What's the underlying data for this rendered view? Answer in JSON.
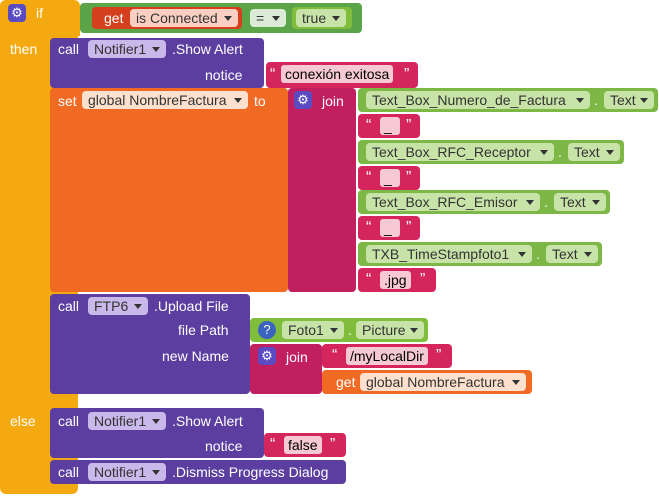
{
  "if_block": {
    "if_label": "if",
    "then_label": "then",
    "else_label": "else",
    "get_label": "get",
    "is_connected": "is Connected",
    "op": "=",
    "true_label": "true"
  },
  "alert1": {
    "call": "call",
    "component": "Notifier1",
    "method": ".Show Alert",
    "notice_label": "notice",
    "notice_value": "conexión exitosa"
  },
  "set_block": {
    "set": "set",
    "variable": "global NombreFactura",
    "to": "to",
    "join": "join",
    "items": [
      {
        "component": "Text_Box_Numero_de_Factura",
        "property": "Text"
      },
      {
        "string": "_"
      },
      {
        "component": "Text_Box_RFC_Receptor",
        "property": "Text"
      },
      {
        "string": "_"
      },
      {
        "component": "Text_Box_RFC_Emisor",
        "property": "Text"
      },
      {
        "string": "_"
      },
      {
        "component": "TXB_TimeStampfoto1",
        "property": "Text"
      },
      {
        "string": ".jpg"
      }
    ]
  },
  "upload": {
    "call": "call",
    "component": "FTP6",
    "method": ".Upload File",
    "file_path_label": "file Path",
    "foto": "Foto1",
    "picture": "Picture",
    "new_name_label": "new Name",
    "join": "join",
    "dir": "/myLocalDir",
    "get": "get",
    "variable": "global NombreFactura"
  },
  "alert2": {
    "call": "call",
    "component": "Notifier1",
    "method": ".Show Alert",
    "notice_label": "notice",
    "notice_value": "false"
  },
  "dismiss": {
    "call": "call",
    "component": "Notifier1",
    "method": ".Dismiss Progress Dialog"
  },
  "dot": ".",
  "quote_open": "“",
  "quote_close": "”",
  "colors": {
    "control": "#f5a910",
    "component": "#5b3ea0",
    "variable": "#f06a24",
    "text": "#d4265d",
    "logic": "#5ba548",
    "property": "#80bd3c"
  }
}
